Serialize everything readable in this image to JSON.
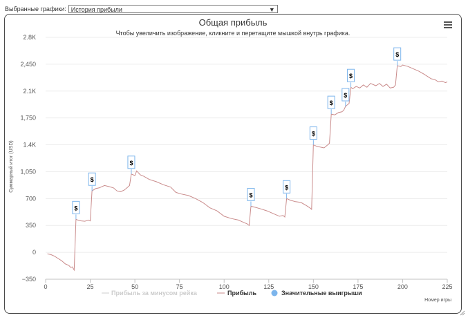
{
  "controls": {
    "selector_label": "Выбранные графики:",
    "selector_value": "История прибыли"
  },
  "chart_data": {
    "type": "line",
    "title": "Общая прибыль",
    "subtitle": "Чтобы увеличить изображение, кликните и перетащите мышкой внутрь графика.",
    "xlabel": "Номер игры",
    "ylabel": "Суммарный итог (USD)",
    "xlim": [
      0,
      225
    ],
    "ylim": [
      -350,
      2800
    ],
    "x_ticks": [
      0,
      25,
      50,
      75,
      100,
      125,
      150,
      175,
      200,
      225
    ],
    "y_ticks": [
      -350,
      0,
      350,
      700,
      1050,
      1400,
      1750,
      2100,
      2450,
      2800
    ],
    "y_tick_labels": [
      "−350",
      "0",
      "350",
      "700",
      "1,050",
      "1.4K",
      "1,750",
      "2.1K",
      "2,450",
      "2.8K"
    ],
    "grid": true,
    "legend_position": "bottom-center",
    "series": [
      {
        "name": "Прибыль за минусом рейка",
        "color": "#cccccc",
        "hidden": true,
        "points": []
      },
      {
        "name": "Прибыль",
        "color": "#c98a8a",
        "points": [
          [
            1,
            -20
          ],
          [
            3,
            -30
          ],
          [
            5,
            -50
          ],
          [
            7,
            -80
          ],
          [
            9,
            -110
          ],
          [
            11,
            -150
          ],
          [
            13,
            -170
          ],
          [
            14,
            -195
          ],
          [
            15,
            -190
          ],
          [
            16,
            -230
          ],
          [
            17,
            430
          ],
          [
            18,
            420
          ],
          [
            20,
            410
          ],
          [
            22,
            405
          ],
          [
            24,
            420
          ],
          [
            25,
            410
          ],
          [
            26,
            800
          ],
          [
            28,
            830
          ],
          [
            30,
            840
          ],
          [
            33,
            870
          ],
          [
            35,
            860
          ],
          [
            38,
            840
          ],
          [
            40,
            800
          ],
          [
            42,
            790
          ],
          [
            44,
            810
          ],
          [
            46,
            850
          ],
          [
            47,
            870
          ],
          [
            48,
            1020
          ],
          [
            50,
            1000
          ],
          [
            51,
            1060
          ],
          [
            53,
            1010
          ],
          [
            55,
            990
          ],
          [
            58,
            950
          ],
          [
            62,
            920
          ],
          [
            66,
            880
          ],
          [
            70,
            850
          ],
          [
            73,
            780
          ],
          [
            76,
            760
          ],
          [
            80,
            740
          ],
          [
            84,
            700
          ],
          [
            88,
            650
          ],
          [
            92,
            580
          ],
          [
            96,
            540
          ],
          [
            100,
            470
          ],
          [
            104,
            440
          ],
          [
            108,
            420
          ],
          [
            110,
            400
          ],
          [
            112,
            380
          ],
          [
            113,
            370
          ],
          [
            114,
            350
          ],
          [
            115,
            600
          ],
          [
            117,
            590
          ],
          [
            120,
            570
          ],
          [
            124,
            540
          ],
          [
            128,
            500
          ],
          [
            131,
            470
          ],
          [
            133,
            480
          ],
          [
            134,
            460
          ],
          [
            135,
            700
          ],
          [
            137,
            680
          ],
          [
            140,
            660
          ],
          [
            143,
            650
          ],
          [
            146,
            610
          ],
          [
            148,
            580
          ],
          [
            149,
            560
          ],
          [
            150,
            1400
          ],
          [
            152,
            1380
          ],
          [
            154,
            1370
          ],
          [
            156,
            1360
          ],
          [
            158,
            1400
          ],
          [
            159,
            1420
          ],
          [
            160,
            1800
          ],
          [
            162,
            1790
          ],
          [
            164,
            1820
          ],
          [
            166,
            1830
          ],
          [
            167,
            1850
          ],
          [
            168,
            1900
          ],
          [
            169,
            1920
          ],
          [
            170,
            1940
          ],
          [
            171,
            2150
          ],
          [
            172,
            2130
          ],
          [
            174,
            2160
          ],
          [
            176,
            2140
          ],
          [
            178,
            2180
          ],
          [
            180,
            2150
          ],
          [
            182,
            2200
          ],
          [
            185,
            2170
          ],
          [
            187,
            2200
          ],
          [
            189,
            2160
          ],
          [
            191,
            2190
          ],
          [
            193,
            2140
          ],
          [
            195,
            2150
          ],
          [
            196,
            2180
          ],
          [
            197,
            2430
          ],
          [
            199,
            2420
          ],
          [
            200,
            2440
          ],
          [
            203,
            2420
          ],
          [
            206,
            2390
          ],
          [
            209,
            2360
          ],
          [
            212,
            2320
          ],
          [
            214,
            2290
          ],
          [
            216,
            2260
          ],
          [
            218,
            2250
          ],
          [
            220,
            2220
          ],
          [
            222,
            2230
          ],
          [
            224,
            2210
          ],
          [
            225,
            2220
          ]
        ]
      }
    ],
    "significant_wins": {
      "name": "Значительные выигрыши",
      "color": "#7cb5ec",
      "marker": "$",
      "x": [
        17,
        26,
        48,
        115,
        135,
        150,
        160,
        168,
        171,
        197
      ]
    }
  }
}
